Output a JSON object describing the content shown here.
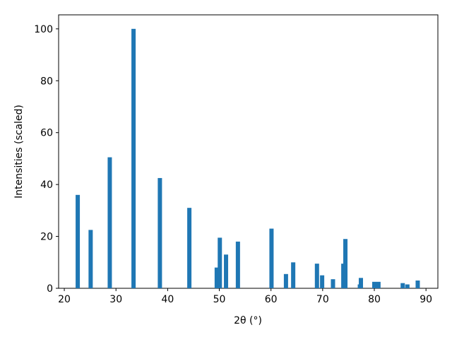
{
  "chart_data": {
    "type": "bar",
    "xlabel": "2θ (°)",
    "ylabel": "Intensities (scaled)",
    "x": [
      22.6,
      25.1,
      28.8,
      33.4,
      38.5,
      44.2,
      49.5,
      50.1,
      51.3,
      53.6,
      60.1,
      62.9,
      64.3,
      68.9,
      69.9,
      72.0,
      74.0,
      74.4,
      77.2,
      77.4,
      80.0,
      80.8,
      85.5,
      86.4,
      88.4
    ],
    "values": [
      36,
      22.5,
      50.5,
      100,
      42.5,
      31,
      8,
      19.5,
      13,
      18,
      23,
      5.5,
      10,
      9.5,
      5,
      3.5,
      9.5,
      19,
      1.5,
      4,
      2.5,
      2.5,
      2,
      1.5,
      3
    ],
    "color": "#1f77b4",
    "xlim": [
      18.9,
      92.3
    ],
    "xticks": [
      20,
      30,
      40,
      50,
      60,
      70,
      80,
      90
    ],
    "ylim": [
      0,
      105.4
    ],
    "yticks": [
      0,
      20,
      40,
      60,
      80,
      100
    ]
  }
}
